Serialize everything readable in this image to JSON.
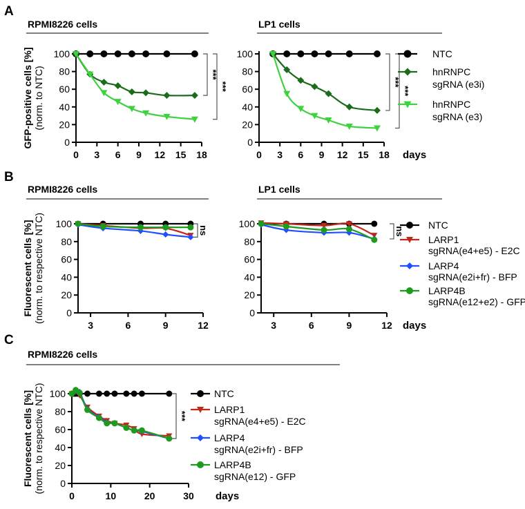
{
  "panels": [
    {
      "letter": "A",
      "titles": [
        "RPMI8226 cells",
        "LP1 cells"
      ]
    },
    {
      "letter": "B",
      "titles": [
        "RPMI8226 cells",
        "LP1 cells"
      ]
    },
    {
      "letter": "C",
      "titles": [
        "RPMI8226 cells"
      ]
    }
  ],
  "xlabel": "days",
  "chart_data": [
    {
      "id": "A-left",
      "type": "line",
      "title": "RPMI8226 cells",
      "ylabel": [
        "GFP-positive cells [%]",
        "(norm. to NTC)"
      ],
      "xlabel": "days",
      "xlim": [
        0,
        18
      ],
      "ylim": [
        0,
        100
      ],
      "xticks": [
        0,
        3,
        6,
        9,
        12,
        15,
        18
      ],
      "yticks": [
        0,
        20,
        40,
        60,
        80,
        100
      ],
      "series": [
        {
          "name": "NTC",
          "color": "#000000",
          "marker": "circle",
          "x": [
            0,
            2,
            4,
            6,
            8,
            10,
            13,
            17
          ],
          "y": [
            100,
            100,
            100,
            100,
            100,
            100,
            100,
            100
          ]
        },
        {
          "name": "hnRNPC sgRNA (e3i)",
          "color": "#1a6b1a",
          "marker": "diamond",
          "x": [
            0,
            2,
            4,
            6,
            8,
            10,
            13,
            17
          ],
          "y": [
            100,
            77,
            68,
            64,
            57,
            56,
            53,
            53
          ]
        },
        {
          "name": "hnRNPC sgRNA (e3)",
          "color": "#3fd13f",
          "marker": "triangle-down",
          "x": [
            0,
            2,
            4,
            6,
            8,
            10,
            13,
            17
          ],
          "y": [
            100,
            77,
            56,
            46,
            38,
            33,
            29,
            26
          ]
        }
      ],
      "annotations": [
        {
          "label": "***",
          "from": 100,
          "to": 53
        },
        {
          "label": "***",
          "from": 100,
          "to": 26
        }
      ]
    },
    {
      "id": "A-right",
      "type": "line",
      "title": "LP1 cells",
      "xlabel": "days",
      "xlim": [
        0,
        18
      ],
      "ylim": [
        0,
        100
      ],
      "xticks": [
        0,
        3,
        6,
        9,
        12,
        15,
        18
      ],
      "yticks": [
        0,
        20,
        40,
        60,
        80,
        100
      ],
      "series": [
        {
          "name": "NTC",
          "color": "#000000",
          "marker": "circle",
          "x": [
            2,
            4,
            6,
            8,
            10,
            13,
            17
          ],
          "y": [
            100,
            100,
            100,
            100,
            100,
            100,
            100
          ]
        },
        {
          "name": "hnRNPC sgRNA (e3i)",
          "color": "#1a6b1a",
          "marker": "diamond",
          "x": [
            2,
            4,
            6,
            8,
            10,
            13,
            17
          ],
          "y": [
            100,
            82,
            70,
            63,
            55,
            40,
            36
          ]
        },
        {
          "name": "hnRNPC sgRNA (e3)",
          "color": "#3fd13f",
          "marker": "triangle-down",
          "x": [
            2,
            4,
            6,
            8,
            10,
            13,
            17
          ],
          "y": [
            100,
            55,
            38,
            30,
            25,
            18,
            16
          ]
        }
      ],
      "annotations": [
        {
          "label": "***",
          "from": 100,
          "to": 36
        },
        {
          "label": "***",
          "from": 100,
          "to": 16
        }
      ],
      "legend": {
        "placement": "right",
        "entries": [
          [
            "NTC"
          ],
          [
            "hnRNPC",
            "sgRNA (e3i)"
          ],
          [
            "hnRNPC",
            "sgRNA (e3)"
          ]
        ]
      }
    },
    {
      "id": "B-left",
      "type": "line",
      "title": "RPMI8226 cells",
      "ylabel": [
        "Fluorescent cells [%]",
        "(norm. to respective NTC)"
      ],
      "xlabel": "days",
      "xlim": [
        2,
        12
      ],
      "ylim": [
        0,
        100
      ],
      "xticks": [
        3,
        6,
        9,
        12
      ],
      "yticks": [
        0,
        20,
        40,
        60,
        80,
        100
      ],
      "series": [
        {
          "name": "NTC",
          "color": "#000000",
          "marker": "circle",
          "x": [
            2,
            4,
            7,
            9,
            11
          ],
          "y": [
            100,
            100,
            100,
            100,
            100
          ]
        },
        {
          "name": "LARP1 sgRNA(e4+e5) - E2C",
          "color": "#c0281c",
          "marker": "triangle-down",
          "x": [
            2,
            4,
            7,
            9,
            11
          ],
          "y": [
            100,
            98,
            95,
            95,
            87
          ]
        },
        {
          "name": "LARP4 sgRNA(e2i+fr) - BFP",
          "color": "#1f4fff",
          "marker": "diamond",
          "x": [
            2,
            4,
            7,
            9,
            11
          ],
          "y": [
            99,
            95,
            92,
            88,
            85
          ]
        },
        {
          "name": "LARP4B sgRNA(e12+e2) - GFP",
          "color": "#1e9a1e",
          "marker": "circle",
          "x": [
            2,
            4,
            7,
            9,
            11
          ],
          "y": [
            100,
            97,
            96,
            96,
            96
          ]
        }
      ],
      "annotations": [
        {
          "label": "ns",
          "from": 100,
          "to": 85
        }
      ]
    },
    {
      "id": "B-right",
      "type": "line",
      "title": "LP1 cells",
      "xlabel": "days",
      "xlim": [
        2,
        12
      ],
      "ylim": [
        0,
        100
      ],
      "xticks": [
        3,
        6,
        9,
        12
      ],
      "yticks": [
        0,
        20,
        40,
        60,
        80,
        100
      ],
      "series": [
        {
          "name": "NTC",
          "color": "#000000",
          "marker": "circle",
          "x": [
            2,
            4,
            7,
            9,
            11
          ],
          "y": [
            100,
            100,
            100,
            100,
            100
          ]
        },
        {
          "name": "LARP1 sgRNA(e4+e5) - E2C",
          "color": "#c0281c",
          "marker": "triangle-down",
          "x": [
            2,
            4,
            7,
            9,
            11
          ],
          "y": [
            101,
            100,
            98,
            100,
            87
          ]
        },
        {
          "name": "LARP4 sgRNA(e2i+fr) - BFP",
          "color": "#1f4fff",
          "marker": "diamond",
          "x": [
            2,
            4,
            7,
            9,
            11
          ],
          "y": [
            99,
            93,
            90,
            90,
            83
          ]
        },
        {
          "name": "LARP4B sgRNA(e12+e2) - GFP",
          "color": "#1e9a1e",
          "marker": "circle",
          "x": [
            2,
            4,
            7,
            9,
            11
          ],
          "y": [
            100,
            97,
            93,
            94,
            82
          ]
        }
      ],
      "annotations": [
        {
          "label": "ns",
          "from": 100,
          "to": 83
        }
      ],
      "legend": {
        "placement": "right",
        "entries": [
          [
            "NTC"
          ],
          [
            "LARP1",
            "sgRNA(e4+e5) - E2C"
          ],
          [
            "LARP4",
            "sgRNA(e2i+fr) - BFP"
          ],
          [
            "LARP4B",
            "sgRNA(e12+e2) - GFP"
          ]
        ]
      }
    },
    {
      "id": "C",
      "type": "line",
      "title": "RPMI8226 cells",
      "ylabel": [
        "Fluorescent cells [%]",
        "(norm. to respective NTC)"
      ],
      "xlabel": "days",
      "xlim": [
        0,
        30
      ],
      "ylim": [
        0,
        100
      ],
      "xticks": [
        0,
        10,
        20,
        30
      ],
      "yticks": [
        0,
        20,
        40,
        60,
        80,
        100
      ],
      "series": [
        {
          "name": "NTC",
          "color": "#000000",
          "marker": "circle",
          "x": [
            0,
            0.5,
            1,
            1.5,
            2,
            4,
            7,
            9,
            11,
            14,
            16,
            18,
            25
          ],
          "y": [
            100,
            100,
            100,
            100,
            100,
            100,
            100,
            100,
            100,
            100,
            100,
            100,
            100
          ]
        },
        {
          "name": "LARP1 sgRNA(e4+e5) - E2C",
          "color": "#c0281c",
          "marker": "triangle-down",
          "x": [
            0,
            1,
            2,
            4,
            7,
            9,
            11,
            14,
            16,
            18,
            25
          ],
          "y": [
            100,
            102,
            98,
            85,
            75,
            70,
            67,
            65,
            61,
            55,
            53
          ]
        },
        {
          "name": "LARP4 sgRNA(e2i+fr) - BFP",
          "color": "#1f4fff",
          "marker": "diamond",
          "x": [
            0,
            1,
            2,
            4,
            7,
            9,
            11,
            14,
            16,
            18,
            25
          ],
          "y": [
            100,
            103,
            102,
            83,
            74,
            68,
            67,
            62,
            59,
            58,
            50
          ]
        },
        {
          "name": "LARP4B sgRNA(e12) - GFP",
          "color": "#1e9a1e",
          "marker": "circle",
          "x": [
            0,
            1,
            2,
            4,
            7,
            9,
            11,
            14,
            16,
            18,
            25
          ],
          "y": [
            100,
            104,
            101,
            82,
            73,
            67,
            67,
            62,
            59,
            59,
            50
          ]
        }
      ],
      "annotations": [
        {
          "label": "***",
          "from": 100,
          "to": 50
        }
      ],
      "legend": {
        "placement": "right",
        "entries": [
          [
            "NTC"
          ],
          [
            "LARP1",
            "sgRNA(e4+e5) - E2C"
          ],
          [
            "LARP4",
            "sgRNA(e2i+fr) - BFP"
          ],
          [
            "LARP4B",
            "sgRNA(e12) - GFP"
          ]
        ]
      }
    }
  ]
}
